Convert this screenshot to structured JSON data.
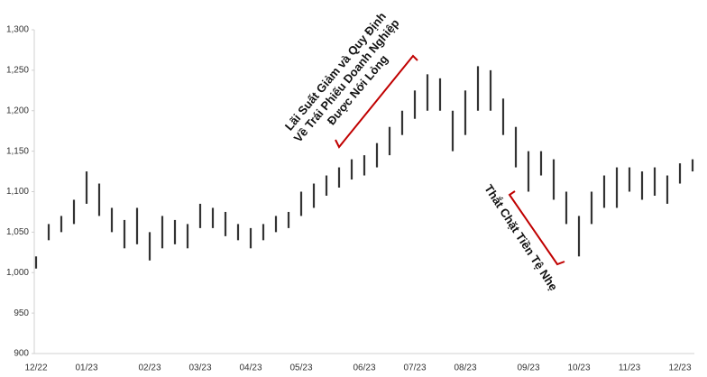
{
  "chart_data": {
    "type": "range-bar",
    "color": "#333333",
    "categories": [
      "12/22",
      null,
      null,
      null,
      "01/23",
      null,
      null,
      null,
      null,
      "02/23",
      null,
      null,
      null,
      "03/23",
      null,
      null,
      null,
      "04/23",
      null,
      null,
      null,
      "05/23",
      null,
      null,
      null,
      null,
      "06/23",
      null,
      null,
      null,
      "07/23",
      null,
      null,
      null,
      "08/23",
      null,
      null,
      null,
      null,
      "09/23",
      null,
      null,
      null,
      "10/23",
      null,
      null,
      null,
      "11/23",
      null,
      null,
      null,
      "12/23",
      null
    ],
    "low": [
      1005,
      1040,
      1050,
      1060,
      1085,
      1070,
      1050,
      1030,
      1035,
      1015,
      1030,
      1035,
      1030,
      1055,
      1055,
      1045,
      1040,
      1030,
      1040,
      1050,
      1055,
      1070,
      1080,
      1095,
      1105,
      1115,
      1120,
      1130,
      1145,
      1170,
      1190,
      1200,
      1200,
      1150,
      1170,
      1200,
      1200,
      1170,
      1130,
      1100,
      1120,
      1090,
      1060,
      1020,
      1060,
      1080,
      1080,
      1100,
      1090,
      1095,
      1085,
      1110,
      1125
    ],
    "high": [
      1020,
      1060,
      1070,
      1090,
      1125,
      1110,
      1080,
      1065,
      1080,
      1050,
      1070,
      1065,
      1060,
      1085,
      1080,
      1075,
      1060,
      1055,
      1060,
      1070,
      1075,
      1100,
      1110,
      1120,
      1130,
      1140,
      1145,
      1160,
      1180,
      1200,
      1225,
      1245,
      1240,
      1200,
      1225,
      1255,
      1250,
      1215,
      1180,
      1150,
      1150,
      1140,
      1100,
      1070,
      1100,
      1120,
      1130,
      1130,
      1125,
      1130,
      1120,
      1135,
      1140
    ],
    "ylim": [
      900,
      1300
    ],
    "yticks": [
      900,
      950,
      {
        "value": 1000,
        "label": "1,000"
      },
      {
        "value": 1050,
        "label": "1,050"
      },
      {
        "value": 1100,
        "label": "1,100"
      },
      {
        "value": 1150,
        "label": "1,150"
      },
      {
        "value": 1200,
        "label": "1,200"
      },
      {
        "value": 1250,
        "label": "1,250"
      },
      {
        "value": 1300,
        "label": "1,300"
      }
    ],
    "annotations": [
      {
        "lines": [
          "Lãi Suất Giảm và Quy Định",
          "Về Trái Phiếu Doanh Nghiệp",
          "Được Nới Lỏng"
        ]
      },
      {
        "lines": [
          "Thắt Chặt Tiền Tệ Nhẹ"
        ]
      }
    ]
  }
}
